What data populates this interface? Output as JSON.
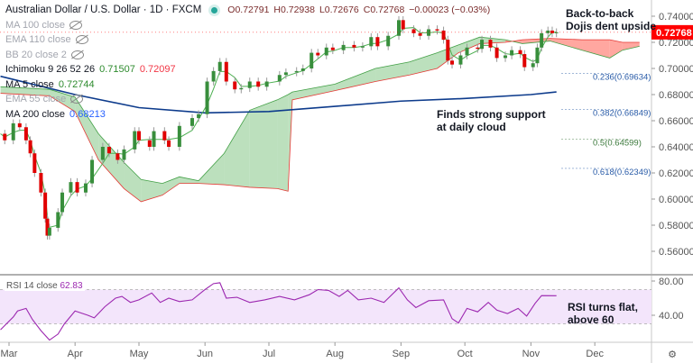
{
  "header": {
    "title": "Australian Dollar / U.S. Dollar · 1D · FXCM",
    "open": "O0.72791",
    "high": "H0.72938",
    "low": "L0.72676",
    "close": "C0.72768",
    "change": "−0.00023 (−0.03%)"
  },
  "indicators": [
    {
      "label": "MA 100 close",
      "hidden": true
    },
    {
      "label": "EMA 110 close",
      "hidden": true
    },
    {
      "label": "BB 20 close 2",
      "hidden": true
    },
    {
      "label": "Ichimoku 9 26 52 26",
      "v1": "0.71507",
      "v2": "0.72097"
    },
    {
      "label": "MA 5 close",
      "v1": "0.72744"
    },
    {
      "label": "EMA 55 close",
      "hidden": true
    },
    {
      "label": "MA 200 close",
      "v1": "0.68213"
    }
  ],
  "annotations": {
    "top": "Back-to-back\nDojis dent upside",
    "support": "Finds strong support\nat daily cloud",
    "rsi": "RSI turns flat,\nabove 60"
  },
  "colors": {
    "up": "#388e3c",
    "down": "#e00000",
    "ma200": "#0d3b8c",
    "ma5": "#4caf50",
    "cloud_bull": "#a5d6a7",
    "cloud_bear": "#ff8a80",
    "rsi": "#9c27b0",
    "price_tag": "#ff0000"
  },
  "current_price": "0.72768",
  "chart_data": [
    {
      "type": "candlestick",
      "ylim": [
        0.545,
        0.745
      ],
      "yticks": [
        "0.74000",
        "0.72000",
        "0.70000",
        "0.68000",
        "0.66000",
        "0.64000",
        "0.62000",
        "0.60000",
        "0.58000",
        "0.56000"
      ],
      "xticks": [
        "Mar",
        "Apr",
        "May",
        "Jun",
        "Jul",
        "Aug",
        "Sep",
        "Oct",
        "Nov",
        "Dec"
      ],
      "close": [
        [
          "2020-02-26",
          0.65
        ],
        [
          "2020-02-28",
          0.645
        ],
        [
          "2020-03-03",
          0.658
        ],
        [
          "2020-03-06",
          0.655
        ],
        [
          "2020-03-09",
          0.645
        ],
        [
          "2020-03-11",
          0.635
        ],
        [
          "2020-03-13",
          0.62
        ],
        [
          "2020-03-16",
          0.605
        ],
        [
          "2020-03-18",
          0.585
        ],
        [
          "2020-03-19",
          0.572
        ],
        [
          "2020-03-20",
          0.578
        ],
        [
          "2020-03-24",
          0.59
        ],
        [
          "2020-03-26",
          0.605
        ],
        [
          "2020-03-30",
          0.613
        ],
        [
          "2020-04-02",
          0.605
        ],
        [
          "2020-04-06",
          0.612
        ],
        [
          "2020-04-09",
          0.63
        ],
        [
          "2020-04-14",
          0.64
        ],
        [
          "2020-04-17",
          0.635
        ],
        [
          "2020-04-21",
          0.63
        ],
        [
          "2020-04-24",
          0.638
        ],
        [
          "2020-04-29",
          0.652
        ],
        [
          "2020-05-01",
          0.645
        ],
        [
          "2020-05-06",
          0.64
        ],
        [
          "2020-05-08",
          0.652
        ],
        [
          "2020-05-13",
          0.645
        ],
        [
          "2020-05-15",
          0.64
        ],
        [
          "2020-05-20",
          0.656
        ],
        [
          "2020-05-26",
          0.662
        ],
        [
          "2020-05-29",
          0.665
        ],
        [
          "2020-06-02",
          0.69
        ],
        [
          "2020-06-05",
          0.698
        ],
        [
          "2020-06-08",
          0.705
        ],
        [
          "2020-06-11",
          0.69
        ],
        [
          "2020-06-15",
          0.684
        ],
        [
          "2020-06-18",
          0.685
        ],
        [
          "2020-06-22",
          0.69
        ],
        [
          "2020-06-26",
          0.686
        ],
        [
          "2020-06-30",
          0.69
        ],
        [
          "2020-07-06",
          0.695
        ],
        [
          "2020-07-09",
          0.697
        ],
        [
          "2020-07-14",
          0.698
        ],
        [
          "2020-07-17",
          0.7
        ],
        [
          "2020-07-21",
          0.712
        ],
        [
          "2020-07-24",
          0.71
        ],
        [
          "2020-07-28",
          0.716
        ],
        [
          "2020-07-31",
          0.714
        ],
        [
          "2020-08-05",
          0.718
        ],
        [
          "2020-08-10",
          0.716
        ],
        [
          "2020-08-14",
          0.717
        ],
        [
          "2020-08-18",
          0.724
        ],
        [
          "2020-08-21",
          0.717
        ],
        [
          "2020-08-26",
          0.725
        ],
        [
          "2020-08-31",
          0.737
        ],
        [
          "2020-09-02",
          0.73
        ],
        [
          "2020-09-07",
          0.727
        ],
        [
          "2020-09-10",
          0.725
        ],
        [
          "2020-09-14",
          0.73
        ],
        [
          "2020-09-18",
          0.729
        ],
        [
          "2020-09-21",
          0.722
        ],
        [
          "2020-09-23",
          0.706
        ],
        [
          "2020-09-25",
          0.703
        ],
        [
          "2020-09-29",
          0.71
        ],
        [
          "2020-10-02",
          0.716
        ],
        [
          "2020-10-07",
          0.715
        ],
        [
          "2020-10-09",
          0.722
        ],
        [
          "2020-10-13",
          0.716
        ],
        [
          "2020-10-16",
          0.708
        ],
        [
          "2020-10-20",
          0.71
        ],
        [
          "2020-10-23",
          0.714
        ],
        [
          "2020-10-27",
          0.711
        ],
        [
          "2020-10-29",
          0.701
        ],
        [
          "2020-11-02",
          0.704
        ],
        [
          "2020-11-04",
          0.716
        ],
        [
          "2020-11-06",
          0.727
        ],
        [
          "2020-11-09",
          0.729
        ],
        [
          "2020-11-11",
          0.727
        ],
        [
          "2020-11-13",
          0.7277
        ]
      ],
      "ma200": [
        [
          "2020-02-26",
          0.694
        ],
        [
          "2020-04-01",
          0.68
        ],
        [
          "2020-05-01",
          0.67
        ],
        [
          "2020-06-01",
          0.666
        ],
        [
          "2020-07-01",
          0.667
        ],
        [
          "2020-08-01",
          0.671
        ],
        [
          "2020-09-01",
          0.675
        ],
        [
          "2020-10-01",
          0.677
        ],
        [
          "2020-11-01",
          0.68
        ],
        [
          "2020-11-13",
          0.682
        ]
      ],
      "cloud": [
        [
          "2020-02-26",
          0.686,
          0.681
        ],
        [
          "2020-03-20",
          0.684,
          0.679
        ],
        [
          "2020-04-01",
          0.678,
          0.667
        ],
        [
          "2020-04-12",
          0.65,
          0.63
        ],
        [
          "2020-04-24",
          0.628,
          0.608
        ],
        [
          "2020-05-02",
          0.615,
          0.598
        ],
        [
          "2020-05-12",
          0.612,
          0.603
        ],
        [
          "2020-05-20",
          0.617,
          0.612
        ],
        [
          "2020-05-29",
          0.614,
          0.612
        ],
        [
          "2020-06-10",
          0.635,
          0.611
        ],
        [
          "2020-06-22",
          0.668,
          0.609
        ],
        [
          "2020-07-05",
          0.676,
          0.608
        ],
        [
          "2020-07-10",
          0.68,
          0.606
        ],
        [
          "2020-07-12",
          0.682,
          0.676
        ],
        [
          "2020-08-01",
          0.688,
          0.683
        ],
        [
          "2020-08-20",
          0.7,
          0.69
        ],
        [
          "2020-09-05",
          0.705,
          0.695
        ],
        [
          "2020-09-18",
          0.712,
          0.7
        ],
        [
          "2020-09-28",
          0.718,
          0.712
        ],
        [
          "2020-10-08",
          0.724,
          0.719
        ],
        [
          "2020-10-20",
          0.722,
          0.72
        ],
        [
          "2020-10-28",
          0.719,
          0.722
        ],
        [
          "2020-11-10",
          0.721,
          0.723
        ],
        [
          "2020-11-25",
          0.714,
          0.722
        ],
        [
          "2020-12-08",
          0.708,
          0.722
        ],
        [
          "2020-12-14",
          0.714,
          0.72
        ],
        [
          "2020-12-22",
          0.717,
          0.72
        ]
      ],
      "fibonacci": [
        {
          "label": "0.236(0.69634)",
          "level": 0.69634,
          "color": "#2a5ca8"
        },
        {
          "label": "0.382(0.66849)",
          "level": 0.66849,
          "color": "#2a5ca8"
        },
        {
          "label": "0.5(0.64599)",
          "level": 0.64599,
          "color": "#3d7a3d"
        },
        {
          "label": "0.618(0.62349)",
          "level": 0.62349,
          "color": "#2a5ca8"
        }
      ]
    },
    {
      "type": "line",
      "title": "RSI 14 close",
      "last": "62.83",
      "ylim": [
        0,
        100
      ],
      "yticks": [
        "80.00",
        "40.00"
      ],
      "band": [
        30,
        70
      ],
      "values": [
        [
          "2020-02-26",
          23
        ],
        [
          "2020-02-28",
          28
        ],
        [
          "2020-03-03",
          38
        ],
        [
          "2020-03-05",
          45
        ],
        [
          "2020-03-09",
          48
        ],
        [
          "2020-03-12",
          35
        ],
        [
          "2020-03-16",
          22
        ],
        [
          "2020-03-20",
          11
        ],
        [
          "2020-03-24",
          18
        ],
        [
          "2020-03-27",
          30
        ],
        [
          "2020-04-01",
          45
        ],
        [
          "2020-04-07",
          40
        ],
        [
          "2020-04-10",
          37
        ],
        [
          "2020-04-15",
          50
        ],
        [
          "2020-04-20",
          60
        ],
        [
          "2020-04-23",
          62
        ],
        [
          "2020-04-27",
          55
        ],
        [
          "2020-05-01",
          58
        ],
        [
          "2020-05-07",
          66
        ],
        [
          "2020-05-11",
          55
        ],
        [
          "2020-05-15",
          60
        ],
        [
          "2020-05-20",
          56
        ],
        [
          "2020-05-26",
          58
        ],
        [
          "2020-06-01",
          70
        ],
        [
          "2020-06-05",
          77
        ],
        [
          "2020-06-08",
          78
        ],
        [
          "2020-06-11",
          60
        ],
        [
          "2020-06-16",
          61
        ],
        [
          "2020-06-22",
          55
        ],
        [
          "2020-06-29",
          58
        ],
        [
          "2020-07-06",
          62
        ],
        [
          "2020-07-13",
          58
        ],
        [
          "2020-07-20",
          64
        ],
        [
          "2020-07-24",
          70
        ],
        [
          "2020-07-29",
          69
        ],
        [
          "2020-08-03",
          62
        ],
        [
          "2020-08-07",
          69
        ],
        [
          "2020-08-12",
          58
        ],
        [
          "2020-08-18",
          60
        ],
        [
          "2020-08-24",
          55
        ],
        [
          "2020-08-31",
          72
        ],
        [
          "2020-09-04",
          58
        ],
        [
          "2020-09-08",
          49
        ],
        [
          "2020-09-14",
          57
        ],
        [
          "2020-09-21",
          58
        ],
        [
          "2020-09-25",
          36
        ],
        [
          "2020-09-28",
          31
        ],
        [
          "2020-10-02",
          48
        ],
        [
          "2020-10-07",
          44
        ],
        [
          "2020-10-12",
          55
        ],
        [
          "2020-10-16",
          46
        ],
        [
          "2020-10-21",
          42
        ],
        [
          "2020-10-26",
          48
        ],
        [
          "2020-10-30",
          39
        ],
        [
          "2020-11-03",
          54
        ],
        [
          "2020-11-06",
          63
        ],
        [
          "2020-11-13",
          62.83
        ]
      ]
    }
  ]
}
